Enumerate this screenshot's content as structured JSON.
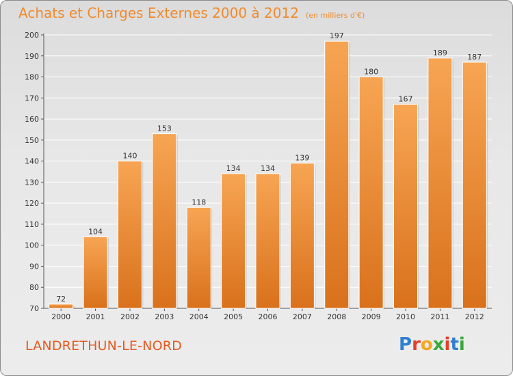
{
  "header": {
    "title": "Achats et Charges Externes 2000 à 2012",
    "subtitle": "(en milliers d'€)"
  },
  "footer": {
    "town": "LANDRETHUN-LE-NORD",
    "brand": "Proxiti"
  },
  "colors": {
    "bar_top": "#f7a553",
    "bar_bottom": "#d9711c",
    "title": "#f08a2c",
    "town": "#e55a20"
  },
  "chart_data": {
    "type": "bar",
    "title": "Achats et Charges Externes 2000 à 2012",
    "subtitle": "(en milliers d'€)",
    "categories": [
      "2000",
      "2001",
      "2002",
      "2003",
      "2004",
      "2005",
      "2006",
      "2007",
      "2008",
      "2009",
      "2010",
      "2011",
      "2012"
    ],
    "values": [
      72,
      104,
      140,
      153,
      118,
      134,
      134,
      139,
      197,
      180,
      167,
      189,
      187
    ],
    "ylim": [
      70,
      200
    ],
    "yticks": [
      70,
      80,
      90,
      100,
      110,
      120,
      130,
      140,
      150,
      160,
      170,
      180,
      190,
      200
    ],
    "grid": true,
    "legend": "none"
  }
}
